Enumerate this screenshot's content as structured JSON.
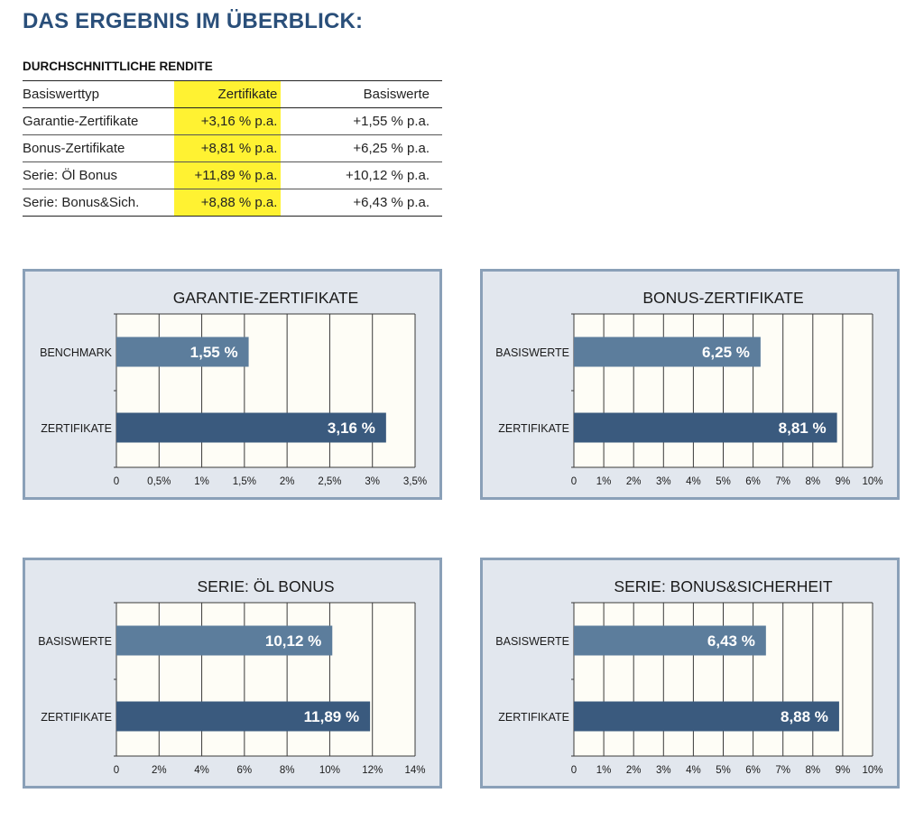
{
  "header": {
    "title": "DAS ERGEBNIS IM ÜBERBLICK:"
  },
  "table": {
    "title": "DURCHSCHNITTLICHE RENDITE",
    "columns": [
      "Basiswerttyp",
      "Zertifikate",
      "Basiswerte"
    ],
    "rows": [
      [
        "Garantie-Zertifikate",
        "+3,16 % p.a.",
        "+1,55 % p.a."
      ],
      [
        "Bonus-Zertifikate",
        "+8,81 % p.a.",
        "+6,25 % p.a."
      ],
      [
        "Serie: Öl Bonus",
        "+11,89 % p.a.",
        "+10,12 % p.a."
      ],
      [
        "Serie: Bonus&Sich.",
        "+8,88 % p.a.",
        "+6,43 % p.a."
      ]
    ],
    "highlight_color": "#fff232"
  },
  "colors": {
    "panel_bg": "#e2e7ee",
    "panel_border": "#8aa0b8",
    "plot_bg": "#fefdf6",
    "bar_light": "#5c7d9c",
    "bar_dark": "#3a5a7e"
  },
  "chart_data": [
    {
      "type": "bar",
      "orientation": "horizontal",
      "title": "GARANTIE-ZERTIFIKATE",
      "categories": [
        "BENCHMARK",
        "ZERTIFIKATE"
      ],
      "values": [
        1.55,
        3.16
      ],
      "value_labels": [
        "1,55 %",
        "3,16 %"
      ],
      "xlim": [
        0,
        3.5
      ],
      "ticks": [
        0,
        0.5,
        1,
        1.5,
        2,
        2.5,
        3,
        3.5
      ],
      "tick_labels": [
        "0",
        "0,5%",
        "1%",
        "1,5%",
        "2%",
        "2,5%",
        "3%",
        "3,5%"
      ]
    },
    {
      "type": "bar",
      "orientation": "horizontal",
      "title": "BONUS-ZERTIFIKATE",
      "categories": [
        "BASISWERTE",
        "ZERTIFIKATE"
      ],
      "values": [
        6.25,
        8.81
      ],
      "value_labels": [
        "6,25 %",
        "8,81 %"
      ],
      "xlim": [
        0,
        10
      ],
      "ticks": [
        0,
        1,
        2,
        3,
        4,
        5,
        6,
        7,
        8,
        9,
        10
      ],
      "tick_labels": [
        "0",
        "1%",
        "2%",
        "3%",
        "4%",
        "5%",
        "6%",
        "7%",
        "8%",
        "9%",
        "10%"
      ]
    },
    {
      "type": "bar",
      "orientation": "horizontal",
      "title": "SERIE: ÖL BONUS",
      "categories": [
        "BASISWERTE",
        "ZERTIFIKATE"
      ],
      "values": [
        10.12,
        11.89
      ],
      "value_labels": [
        "10,12 %",
        "11,89 %"
      ],
      "xlim": [
        0,
        14
      ],
      "ticks": [
        0,
        2,
        4,
        6,
        8,
        10,
        12,
        14
      ],
      "tick_labels": [
        "0",
        "2%",
        "4%",
        "6%",
        "8%",
        "10%",
        "12%",
        "14%"
      ]
    },
    {
      "type": "bar",
      "orientation": "horizontal",
      "title": "SERIE: BONUS&SICHERHEIT",
      "categories": [
        "BASISWERTE",
        "ZERTIFIKATE"
      ],
      "values": [
        6.43,
        8.88
      ],
      "value_labels": [
        "6,43 %",
        "8,88 %"
      ],
      "xlim": [
        0,
        10
      ],
      "ticks": [
        0,
        1,
        2,
        3,
        4,
        5,
        6,
        7,
        8,
        9,
        10
      ],
      "tick_labels": [
        "0",
        "1%",
        "2%",
        "3%",
        "4%",
        "5%",
        "6%",
        "7%",
        "8%",
        "9%",
        "10%"
      ]
    }
  ]
}
